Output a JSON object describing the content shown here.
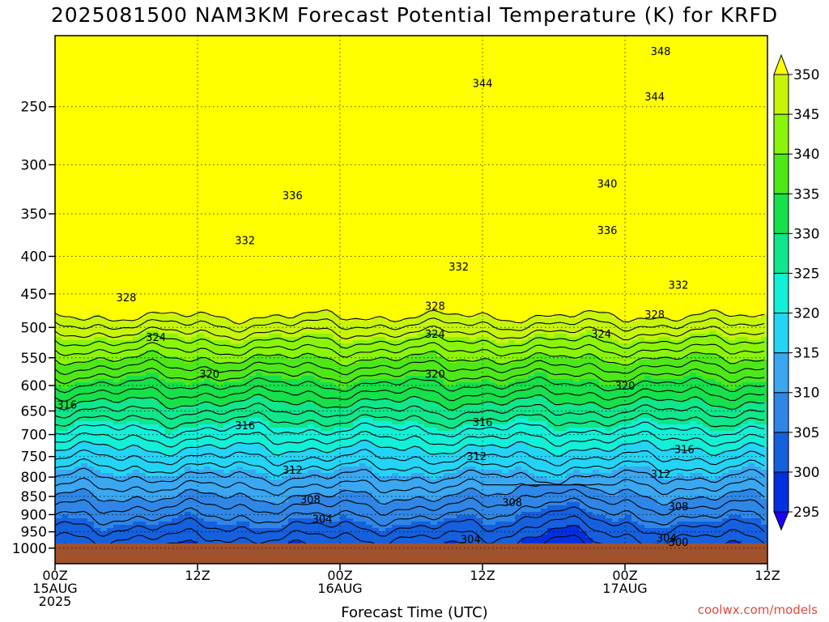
{
  "title": "2025081500 NAM3KM Forecast Potential Temperature (K) for KRFD",
  "credit": "coolwx.com/models",
  "colors": {
    "ground": "#a0522d",
    "bands": [
      "#1a00ff",
      "#0030e0",
      "#1560dd",
      "#2f86e6",
      "#3aa7f0",
      "#23d4f5",
      "#12f0d8",
      "#10e68a",
      "#16e04a",
      "#4ee818",
      "#8af50a",
      "#c7f50a",
      "#ffff00"
    ]
  },
  "chart_data": {
    "type": "contour",
    "variable": "Potential Temperature (K)",
    "xlabel": "Forecast Time (UTC)",
    "ylabel": "",
    "y_scale": "log",
    "y_reversed": true,
    "ylim": [
      1050,
      200
    ],
    "xlim_hours": [
      0,
      60
    ],
    "x_ticks": [
      {
        "hour": 0,
        "labels": [
          "00Z",
          "15AUG",
          "2025"
        ]
      },
      {
        "hour": 12,
        "labels": [
          "12Z"
        ]
      },
      {
        "hour": 24,
        "labels": [
          "00Z",
          "16AUG"
        ]
      },
      {
        "hour": 36,
        "labels": [
          "12Z"
        ]
      },
      {
        "hour": 48,
        "labels": [
          "00Z",
          "17AUG"
        ]
      },
      {
        "hour": 60,
        "labels": [
          "12Z"
        ]
      }
    ],
    "y_ticks": [
      250,
      300,
      350,
      400,
      450,
      500,
      550,
      600,
      650,
      700,
      750,
      800,
      850,
      900,
      950,
      1000
    ],
    "grid": true,
    "surface_pressure": 985,
    "colorbar": {
      "levels": [
        295,
        300,
        305,
        310,
        315,
        320,
        325,
        330,
        335,
        340,
        345,
        350
      ],
      "extend": "both"
    },
    "contour_interval": 2,
    "contour_labels": [
      {
        "value": 348,
        "hour": 51.0,
        "pressure": 210
      },
      {
        "value": 344,
        "hour": 36.0,
        "pressure": 232
      },
      {
        "value": 344,
        "hour": 50.5,
        "pressure": 242
      },
      {
        "value": 340,
        "hour": 46.5,
        "pressure": 318
      },
      {
        "value": 336,
        "hour": 20.0,
        "pressure": 330
      },
      {
        "value": 336,
        "hour": 46.5,
        "pressure": 368
      },
      {
        "value": 332,
        "hour": 16.0,
        "pressure": 380
      },
      {
        "value": 332,
        "hour": 34.0,
        "pressure": 413
      },
      {
        "value": 332,
        "hour": 52.5,
        "pressure": 437
      },
      {
        "value": 328,
        "hour": 6.0,
        "pressure": 455
      },
      {
        "value": 328,
        "hour": 32.0,
        "pressure": 467
      },
      {
        "value": 328,
        "hour": 50.5,
        "pressure": 480
      },
      {
        "value": 324,
        "hour": 8.5,
        "pressure": 515
      },
      {
        "value": 324,
        "hour": 32.0,
        "pressure": 510
      },
      {
        "value": 324,
        "hour": 46.0,
        "pressure": 510
      },
      {
        "value": 320,
        "hour": 13.0,
        "pressure": 578
      },
      {
        "value": 320,
        "hour": 32.0,
        "pressure": 578
      },
      {
        "value": 320,
        "hour": 48.0,
        "pressure": 600
      },
      {
        "value": 316,
        "hour": 1.0,
        "pressure": 637
      },
      {
        "value": 316,
        "hour": 16.0,
        "pressure": 680
      },
      {
        "value": 316,
        "hour": 36.0,
        "pressure": 673
      },
      {
        "value": 316,
        "hour": 53.0,
        "pressure": 733
      },
      {
        "value": 312,
        "hour": 20.0,
        "pressure": 782
      },
      {
        "value": 312,
        "hour": 35.5,
        "pressure": 749
      },
      {
        "value": 312,
        "hour": 51.0,
        "pressure": 792
      },
      {
        "value": 308,
        "hour": 21.5,
        "pressure": 858
      },
      {
        "value": 308,
        "hour": 38.5,
        "pressure": 865
      },
      {
        "value": 308,
        "hour": 52.5,
        "pressure": 877
      },
      {
        "value": 304,
        "hour": 22.5,
        "pressure": 912
      },
      {
        "value": 304,
        "hour": 35.0,
        "pressure": 972
      },
      {
        "value": 304,
        "hour": 51.5,
        "pressure": 968
      },
      {
        "value": 300,
        "hour": 52.5,
        "pressure": 980
      }
    ]
  }
}
